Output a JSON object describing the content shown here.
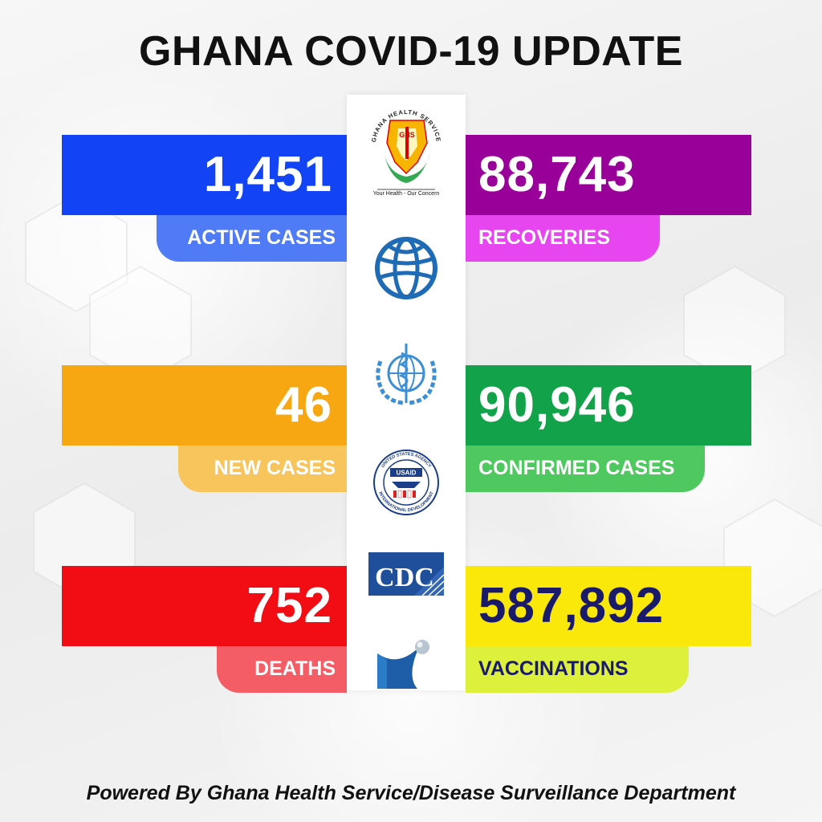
{
  "title": "GHANA COVID-19 UPDATE",
  "stats": {
    "active": {
      "value": "1,451",
      "label": "ACTIVE CASES"
    },
    "recoveries": {
      "value": "88,743",
      "label": "RECOVERIES"
    },
    "new": {
      "value": "46",
      "label": "NEW CASES"
    },
    "confirmed": {
      "value": "90,946",
      "label": "CONFIRMED CASES"
    },
    "deaths": {
      "value": "752",
      "label": "DEATHS"
    },
    "vaccinations": {
      "value": "587,892",
      "label": "VACCINATIONS"
    }
  },
  "logos": {
    "ghs": {
      "arc_text": "GHANA HEALTH SERVICE",
      "letters": "GHS",
      "tagline": "Your Health - Our Concern"
    },
    "usaid": {
      "center": "USAID",
      "arc_top": "UNITED STATES AGENCY",
      "arc_bottom": "INTERNATIONAL DEVELOPMENT"
    },
    "cdc": {
      "text": "CDC"
    },
    "icons": [
      "world-bank-icon",
      "who-icon",
      "partner-swoosh-icon"
    ]
  },
  "colors": {
    "blue": "#1244f5",
    "blue_light": "#4f7bf7",
    "purple": "#990099",
    "purple_light": "#e645f0",
    "orange": "#f7a712",
    "orange_light": "#f8c45c",
    "green": "#12a34a",
    "green_light": "#4fc95f",
    "red": "#f20d14",
    "red_light": "#f55d66",
    "yellow": "#fbe80b",
    "yellow_light": "#dcf03c",
    "navy_text": "#1a1a6b"
  },
  "footer": "Powered By Ghana Health Service/Disease Surveillance Department"
}
